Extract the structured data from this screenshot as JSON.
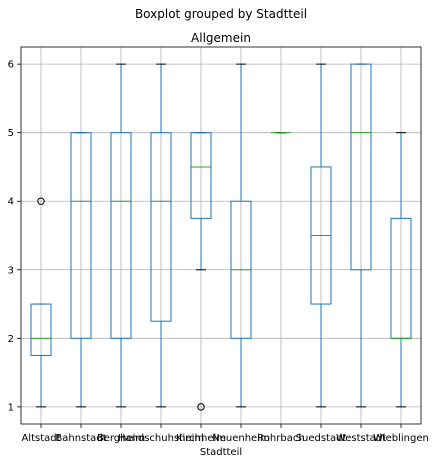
{
  "chart_data": {
    "type": "boxplot",
    "suptitle": "Boxplot grouped by Stadtteil",
    "title": "Allgemein",
    "xlabel": "Stadtteil",
    "ylabel": "",
    "ylim": [
      0.75,
      6.25
    ],
    "yticks": [
      1,
      2,
      3,
      4,
      5,
      6
    ],
    "grid": true,
    "colors": {
      "box": "#1f77b4",
      "median": "#2ca02c",
      "whisker": "#1f77b4",
      "cap": "#000000",
      "grid": "#b0b0b0"
    },
    "categories": [
      "Altstadt",
      "Bahnstadt",
      "Bergheim",
      "Handschuhsheim",
      "Kirchheim",
      "Neuenheim",
      "Rohrbach",
      "Suedstadt",
      "Weststadt",
      "Wieblingen"
    ],
    "boxes": [
      {
        "q1": 1.75,
        "median": 2.0,
        "q3": 2.5,
        "whislo": 1,
        "whishi": 2.5,
        "fliers": [
          4
        ]
      },
      {
        "q1": 2.0,
        "median": 4.0,
        "q3": 5.0,
        "whislo": 1,
        "whishi": 5,
        "fliers": []
      },
      {
        "q1": 2.0,
        "median": 4.0,
        "q3": 5.0,
        "whislo": 1,
        "whishi": 6,
        "fliers": []
      },
      {
        "q1": 2.25,
        "median": 4.0,
        "q3": 5.0,
        "whislo": 1,
        "whishi": 6,
        "fliers": []
      },
      {
        "q1": 3.75,
        "median": 4.5,
        "q3": 5.0,
        "whislo": 3,
        "whishi": 5,
        "fliers": [
          1
        ]
      },
      {
        "q1": 2.0,
        "median": 3.0,
        "q3": 4.0,
        "whislo": 1,
        "whishi": 6,
        "fliers": []
      },
      {
        "q1": 5.0,
        "median": 5.0,
        "q3": 5.0,
        "whislo": 5,
        "whishi": 5,
        "fliers": []
      },
      {
        "q1": 2.5,
        "median": 3.5,
        "q3": 4.5,
        "whislo": 1,
        "whishi": 6,
        "fliers": []
      },
      {
        "q1": 3.0,
        "median": 5.0,
        "q3": 6.0,
        "whislo": 1,
        "whishi": 6,
        "fliers": []
      },
      {
        "q1": 2.0,
        "median": 2.0,
        "q3": 3.75,
        "whislo": 1,
        "whishi": 5,
        "fliers": []
      }
    ]
  }
}
